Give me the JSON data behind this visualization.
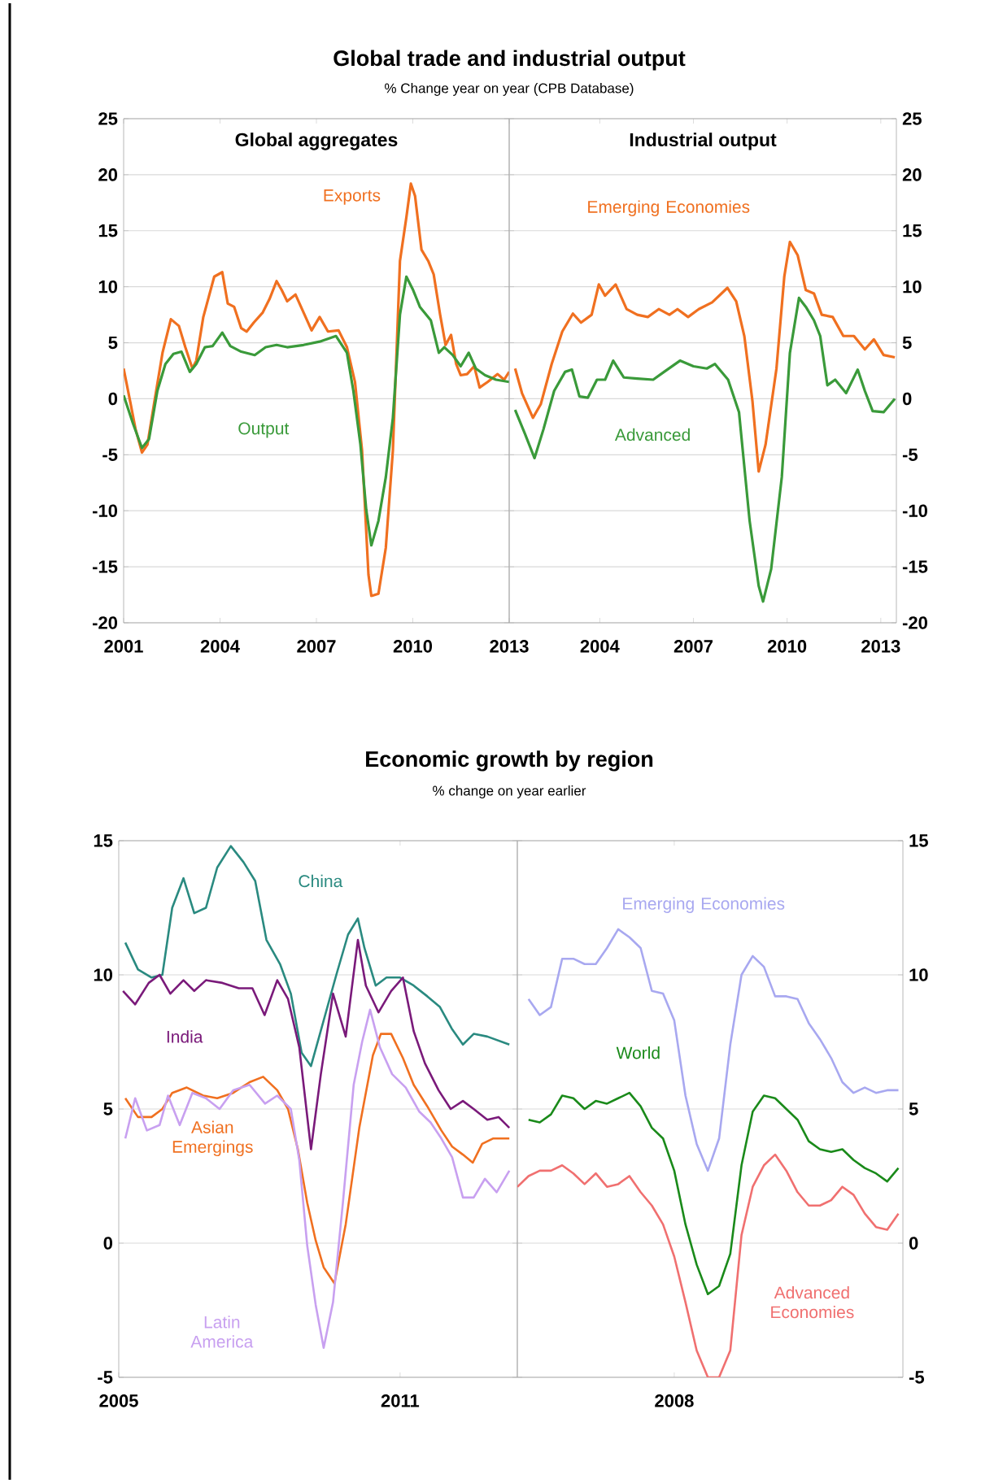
{
  "chart_data": [
    {
      "type": "line",
      "title": "Global trade and industrial output",
      "subtitle": "% Change year on year (CPB Database)",
      "annotations": [
        "Global aggregates"
      ],
      "xlim": [
        2001,
        2013
      ],
      "ylim": [
        -20,
        25
      ],
      "xticks": [
        2001,
        2004,
        2007,
        2010,
        2013
      ],
      "yticks": [
        -20,
        -15,
        -10,
        -5,
        0,
        5,
        10,
        15,
        20,
        25
      ],
      "grid": "y",
      "series": [
        {
          "name": "Exports",
          "color": "#f07020",
          "x": [
            2001.0,
            2001.2,
            2001.37,
            2001.57,
            2001.74,
            2001.96,
            2002.21,
            2002.47,
            2002.72,
            2002.92,
            2003.14,
            2003.26,
            2003.48,
            2003.82,
            2004.07,
            2004.24,
            2004.44,
            2004.66,
            2004.83,
            2005.05,
            2005.33,
            2005.54,
            2005.76,
            2005.92,
            2006.09,
            2006.35,
            2006.6,
            2006.85,
            2007.1,
            2007.36,
            2007.69,
            2007.95,
            2008.2,
            2008.42,
            2008.62,
            2008.71,
            2008.93,
            2009.16,
            2009.38,
            2009.6,
            2009.8,
            2009.94,
            2010.07,
            2010.27,
            2010.48,
            2010.65,
            2010.85,
            2011.02,
            2011.19,
            2011.35,
            2011.49,
            2011.69,
            2011.91,
            2012.08,
            2012.33,
            2012.64,
            2012.84,
            2013.0
          ],
          "values": [
            2.7,
            -0.2,
            -2.7,
            -4.8,
            -4.1,
            -0.2,
            4.1,
            7.1,
            6.5,
            4.6,
            2.7,
            3.4,
            7.3,
            10.9,
            11.3,
            8.5,
            8.2,
            6.3,
            6.0,
            6.8,
            7.7,
            8.9,
            10.5,
            9.7,
            8.7,
            9.3,
            7.7,
            6.1,
            7.3,
            6.0,
            6.1,
            4.6,
            1.5,
            -4.6,
            -15.7,
            -17.6,
            -17.4,
            -13.3,
            -4.6,
            12.3,
            16.2,
            19.2,
            18.1,
            13.3,
            12.3,
            11.1,
            7.5,
            4.8,
            5.7,
            3.1,
            2.1,
            2.2,
            2.9,
            1.0,
            1.5,
            2.2,
            1.7,
            2.4
          ]
        },
        {
          "name": "Output",
          "color": "#3a9a3a",
          "x": [
            2001.0,
            2001.29,
            2001.57,
            2001.79,
            2002.05,
            2002.3,
            2002.55,
            2002.8,
            2003.06,
            2003.26,
            2003.53,
            2003.77,
            2004.07,
            2004.32,
            2004.66,
            2005.08,
            2005.42,
            2005.76,
            2006.09,
            2006.6,
            2007.1,
            2007.61,
            2007.95,
            2008.15,
            2008.37,
            2008.55,
            2008.71,
            2008.93,
            2009.16,
            2009.38,
            2009.6,
            2009.8,
            2010.01,
            2010.22,
            2010.56,
            2010.81,
            2010.98,
            2011.24,
            2011.49,
            2011.74,
            2011.96,
            2012.25,
            2012.59,
            2013.0
          ],
          "values": [
            0.3,
            -2.2,
            -4.4,
            -3.6,
            0.7,
            3.1,
            4.0,
            4.2,
            2.4,
            3.1,
            4.6,
            4.7,
            5.9,
            4.7,
            4.2,
            3.9,
            4.6,
            4.8,
            4.6,
            4.8,
            5.1,
            5.6,
            4.1,
            0.7,
            -4.1,
            -9.9,
            -13.1,
            -10.9,
            -7.0,
            -1.7,
            7.5,
            10.9,
            9.7,
            8.2,
            7.0,
            4.1,
            4.6,
            3.9,
            2.9,
            4.1,
            2.7,
            2.1,
            1.7,
            1.5
          ]
        }
      ]
    },
    {
      "type": "line",
      "title": "Industrial output",
      "xlim": [
        2001.1,
        2013.5
      ],
      "ylim": [
        -20,
        25
      ],
      "xticks": [
        2004,
        2007,
        2010,
        2013
      ],
      "yticks": [
        -20,
        -15,
        -10,
        -5,
        0,
        5,
        10,
        15,
        20,
        25
      ],
      "grid": "y",
      "series": [
        {
          "name": "Emerging Economies",
          "color": "#f07020",
          "x": [
            2001.29,
            2001.51,
            2001.86,
            2002.11,
            2002.46,
            2002.8,
            2003.14,
            2003.4,
            2003.74,
            2003.97,
            2004.17,
            2004.51,
            2004.86,
            2005.2,
            2005.54,
            2005.89,
            2006.23,
            2006.49,
            2006.83,
            2007.17,
            2007.6,
            2008.09,
            2008.37,
            2008.63,
            2008.89,
            2009.09,
            2009.31,
            2009.66,
            2009.91,
            2010.09,
            2010.34,
            2010.6,
            2010.86,
            2011.11,
            2011.46,
            2011.8,
            2012.14,
            2012.49,
            2012.78,
            2013.09,
            2013.45
          ],
          "values": [
            2.7,
            0.5,
            -1.7,
            -0.5,
            3.1,
            6.0,
            7.6,
            6.8,
            7.5,
            10.2,
            9.2,
            10.2,
            8.0,
            7.5,
            7.3,
            8.0,
            7.5,
            8.0,
            7.3,
            8.0,
            8.6,
            9.9,
            8.7,
            5.6,
            -0.2,
            -6.5,
            -4.1,
            2.7,
            10.9,
            14.0,
            12.8,
            9.7,
            9.4,
            7.5,
            7.3,
            5.6,
            5.6,
            4.4,
            5.3,
            3.9,
            3.7
          ]
        },
        {
          "name": "Advanced",
          "color": "#3a9a3a",
          "x": [
            2001.29,
            2001.6,
            2001.91,
            2002.2,
            2002.54,
            2002.89,
            2003.11,
            2003.35,
            2003.62,
            2003.91,
            2004.17,
            2004.43,
            2004.77,
            2005.2,
            2005.71,
            2006.06,
            2006.57,
            2007.0,
            2007.43,
            2007.69,
            2008.11,
            2008.46,
            2008.8,
            2009.09,
            2009.23,
            2009.49,
            2009.83,
            2010.09,
            2010.38,
            2010.6,
            2010.86,
            2011.06,
            2011.29,
            2011.54,
            2011.89,
            2012.26,
            2012.49,
            2012.74,
            2013.09,
            2013.45
          ],
          "values": [
            -1.0,
            -3.1,
            -5.3,
            -2.7,
            0.7,
            2.4,
            2.6,
            0.2,
            0.1,
            1.7,
            1.7,
            3.4,
            1.9,
            1.8,
            1.7,
            2.4,
            3.4,
            2.9,
            2.7,
            3.1,
            1.7,
            -1.2,
            -10.9,
            -16.7,
            -18.1,
            -15.2,
            -7.0,
            4.1,
            9.0,
            8.2,
            7.0,
            5.6,
            1.2,
            1.7,
            0.5,
            2.6,
            0.7,
            -1.1,
            -1.2,
            0.0
          ]
        }
      ]
    },
    {
      "type": "line",
      "title": "Economic growth by region",
      "subtitle": "% change on year earlier",
      "xlim": [
        2005,
        2013.5
      ],
      "ylim": [
        -5,
        15
      ],
      "xticks": [
        2005,
        2011
      ],
      "yticks": [
        -5,
        0,
        5,
        10,
        15
      ],
      "grid": "y",
      "series": [
        {
          "name": "China",
          "color": "#2a8a80",
          "x": [
            2005.14,
            2005.41,
            2005.7,
            2005.93,
            2006.14,
            2006.38,
            2006.61,
            2006.86,
            2007.1,
            2007.39,
            2007.66,
            2007.91,
            2008.15,
            2008.44,
            2008.67,
            2008.9,
            2009.1,
            2009.37,
            2009.64,
            2009.89,
            2010.1,
            2010.24,
            2010.48,
            2010.71,
            2011.0,
            2011.29,
            2011.58,
            2011.85,
            2012.1,
            2012.34,
            2012.57,
            2012.86,
            2013.33
          ],
          "values": [
            11.2,
            10.2,
            9.9,
            10.0,
            12.5,
            13.6,
            12.3,
            12.5,
            14.0,
            14.8,
            14.2,
            13.5,
            11.3,
            10.4,
            9.3,
            7.1,
            6.6,
            8.3,
            10.0,
            11.5,
            12.1,
            11.0,
            9.6,
            9.9,
            9.9,
            9.6,
            9.2,
            8.8,
            8.0,
            7.4,
            7.8,
            7.7,
            7.4
          ]
        },
        {
          "name": "India",
          "color": "#7a1a7a",
          "x": [
            2005.09,
            2005.35,
            2005.64,
            2005.87,
            2006.1,
            2006.38,
            2006.61,
            2006.86,
            2007.21,
            2007.56,
            2007.85,
            2008.11,
            2008.38,
            2008.61,
            2008.85,
            2009.1,
            2009.31,
            2009.57,
            2009.84,
            2010.1,
            2010.27,
            2010.54,
            2010.81,
            2011.06,
            2011.29,
            2011.53,
            2011.82,
            2012.08,
            2012.34,
            2012.57,
            2012.86,
            2013.1,
            2013.33
          ],
          "values": [
            9.4,
            8.9,
            9.7,
            10.0,
            9.3,
            9.8,
            9.4,
            9.8,
            9.7,
            9.5,
            9.5,
            8.5,
            9.8,
            9.1,
            7.3,
            3.5,
            6.3,
            9.3,
            7.7,
            11.3,
            9.6,
            8.6,
            9.4,
            9.9,
            7.9,
            6.7,
            5.7,
            5.0,
            5.3,
            5.0,
            4.6,
            4.7,
            4.3
          ]
        },
        {
          "name": "Asian Emergings",
          "color": "#f07020",
          "x": [
            2005.14,
            2005.41,
            2005.7,
            2005.93,
            2006.14,
            2006.45,
            2006.8,
            2007.1,
            2007.44,
            2007.79,
            2008.08,
            2008.38,
            2008.61,
            2008.82,
            2009.02,
            2009.2,
            2009.37,
            2009.6,
            2009.84,
            2010.13,
            2010.42,
            2010.59,
            2010.81,
            2011.06,
            2011.29,
            2011.58,
            2011.88,
            2012.11,
            2012.34,
            2012.55,
            2012.75,
            2012.98,
            2013.33
          ],
          "values": [
            5.4,
            4.7,
            4.7,
            5.0,
            5.6,
            5.8,
            5.5,
            5.4,
            5.6,
            6.0,
            6.2,
            5.7,
            5.0,
            3.5,
            1.5,
            0.1,
            -0.9,
            -1.5,
            0.7,
            4.3,
            7.0,
            7.8,
            7.8,
            6.9,
            5.9,
            5.1,
            4.2,
            3.6,
            3.3,
            3.0,
            3.7,
            3.9,
            3.9
          ]
        },
        {
          "name": "Latin America",
          "color": "#c8a0f0",
          "x": [
            2005.14,
            2005.35,
            2005.6,
            2005.87,
            2006.05,
            2006.3,
            2006.57,
            2006.86,
            2007.15,
            2007.44,
            2007.79,
            2008.12,
            2008.38,
            2008.67,
            2008.85,
            2009.02,
            2009.2,
            2009.37,
            2009.57,
            2009.78,
            2010.01,
            2010.19,
            2010.36,
            2010.57,
            2010.83,
            2011.12,
            2011.41,
            2011.65,
            2011.88,
            2012.11,
            2012.34,
            2012.57,
            2012.81,
            2013.06,
            2013.33
          ],
          "values": [
            3.9,
            5.4,
            4.2,
            4.4,
            5.5,
            4.4,
            5.6,
            5.4,
            5.0,
            5.7,
            5.9,
            5.2,
            5.5,
            5.0,
            3.1,
            -0.1,
            -2.3,
            -3.9,
            -2.2,
            1.5,
            5.9,
            7.5,
            8.7,
            7.3,
            6.3,
            5.8,
            4.9,
            4.5,
            3.9,
            3.2,
            1.7,
            1.7,
            2.4,
            1.9,
            2.7
          ]
        }
      ]
    },
    {
      "type": "line",
      "categories": [
        null,
        null,
        null,
        null,
        null,
        null,
        null,
        null,
        null,
        null,
        null,
        null,
        null,
        null,
        "2008",
        null,
        null,
        null,
        null,
        null,
        null,
        null,
        null,
        null,
        null,
        null,
        null,
        null,
        null,
        null,
        null,
        null,
        null,
        null,
        null
      ],
      "ylim": [
        -5,
        15
      ],
      "yticks": [
        -5,
        0,
        5,
        10,
        15
      ],
      "grid": "y",
      "series": [
        {
          "name": "Emerging Economies",
          "color": "#a8a8f0",
          "values": [
            null,
            9.1,
            8.5,
            8.8,
            10.6,
            10.6,
            10.4,
            10.4,
            11.0,
            11.7,
            11.4,
            11.0,
            9.4,
            9.3,
            8.3,
            5.5,
            3.7,
            2.7,
            3.9,
            7.4,
            10.0,
            10.7,
            10.3,
            9.2,
            9.2,
            9.1,
            8.2,
            7.6,
            6.9,
            6.0,
            5.6,
            5.8,
            5.6,
            5.7,
            5.7
          ]
        },
        {
          "name": "World",
          "color": "#1a8a1a",
          "values": [
            null,
            4.6,
            4.5,
            4.8,
            5.5,
            5.4,
            5.0,
            5.3,
            5.2,
            5.4,
            5.6,
            5.1,
            4.3,
            3.9,
            2.7,
            0.7,
            -0.8,
            -1.9,
            -1.6,
            -0.4,
            2.9,
            4.9,
            5.5,
            5.4,
            5.0,
            4.6,
            3.8,
            3.5,
            3.4,
            3.5,
            3.1,
            2.8,
            2.6,
            2.3,
            2.8
          ]
        },
        {
          "name": "Advanced Economies",
          "color": "#f07070",
          "values": [
            2.1,
            2.5,
            2.7,
            2.7,
            2.9,
            2.6,
            2.2,
            2.6,
            2.1,
            2.2,
            2.5,
            1.9,
            1.4,
            0.7,
            -0.5,
            -2.2,
            -4.0,
            -5.0,
            -5.0,
            -4.0,
            0.3,
            2.1,
            2.9,
            3.3,
            2.7,
            1.9,
            1.4,
            1.4,
            1.6,
            2.1,
            1.8,
            1.1,
            0.6,
            0.5,
            1.1
          ]
        }
      ]
    }
  ]
}
